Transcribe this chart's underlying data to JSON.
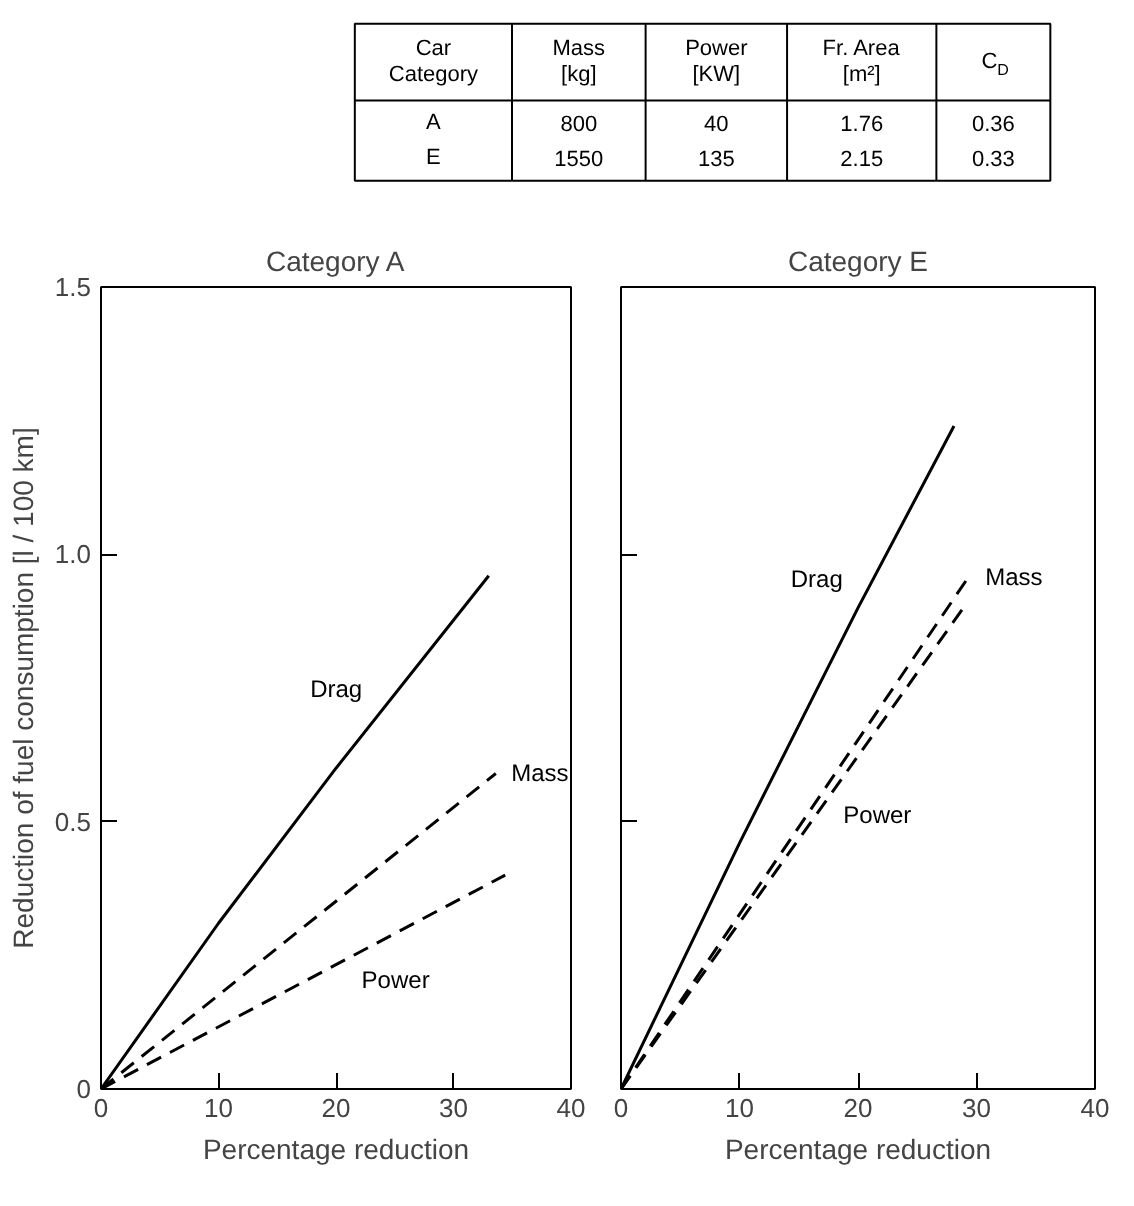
{
  "chart_data": [
    {
      "type": "other",
      "categories": [
        "Car\nCategory",
        "Mass\n[kg]",
        "Power\n[KW]",
        "Fr. Area\n[m²]",
        "C$_{D}$"
      ],
      "cell_labels": [
        [
          "A",
          "800",
          "40",
          "1.76",
          "0.36"
        ],
        [
          "E",
          "1550",
          "135",
          "2.15",
          "0.33"
        ]
      ]
    },
    {
      "type": "line",
      "title": "Category A",
      "xlabel": "Percentage reduction",
      "ylabel": "Reduction of fuel consumption [l / 100 km]",
      "xlim": [
        0,
        40
      ],
      "ylim": [
        0,
        1.5
      ],
      "xticks": [
        0,
        10,
        20,
        30,
        40
      ],
      "yticks": [
        0,
        0.5,
        {
          "value": 1,
          "label": "1.0"
        },
        1.5
      ],
      "grid": false,
      "series": [
        {
          "name": "Drag",
          "color": "#000000",
          "line_style": "solid",
          "x": [
            0,
            10,
            20,
            33
          ],
          "values": [
            0,
            0.31,
            0.6,
            0.96
          ]
        },
        {
          "name": "Mass",
          "color": "#000000",
          "line_style": "dashed",
          "x": [
            0,
            33.6
          ],
          "values": [
            0,
            0.59
          ]
        },
        {
          "name": "Power",
          "color": "#000000",
          "line_style": "dashed",
          "x": [
            0,
            34.4
          ],
          "values": [
            0,
            0.4
          ]
        }
      ]
    },
    {
      "type": "line",
      "title": "Category E",
      "xlabel": "Percentage reduction",
      "xlim": [
        0,
        40
      ],
      "ylim": [
        0,
        1.5
      ],
      "xticks": [
        0,
        10,
        20,
        30,
        40
      ],
      "yticks": [
        {
          "value": 0,
          "label": null
        },
        {
          "value": 0.5,
          "label": null
        },
        {
          "value": 1,
          "label": null
        },
        {
          "value": 1.5,
          "label": null
        }
      ],
      "tick_labels": "x",
      "grid": false,
      "series": [
        {
          "name": "Drag",
          "color": "#000000",
          "line_style": "solid",
          "x": [
            0,
            10,
            20,
            28.1
          ],
          "values": [
            0,
            0.46,
            0.9,
            1.24
          ]
        },
        {
          "name": "Mass",
          "color": "#000000",
          "line_style": "dashed",
          "x": [
            0,
            29.4
          ],
          "values": [
            0,
            0.96
          ]
        },
        {
          "name": "Power",
          "color": "#000000",
          "line_style": "dashed",
          "x": [
            0,
            28.9
          ],
          "values": [
            0,
            0.9
          ]
        }
      ]
    }
  ]
}
